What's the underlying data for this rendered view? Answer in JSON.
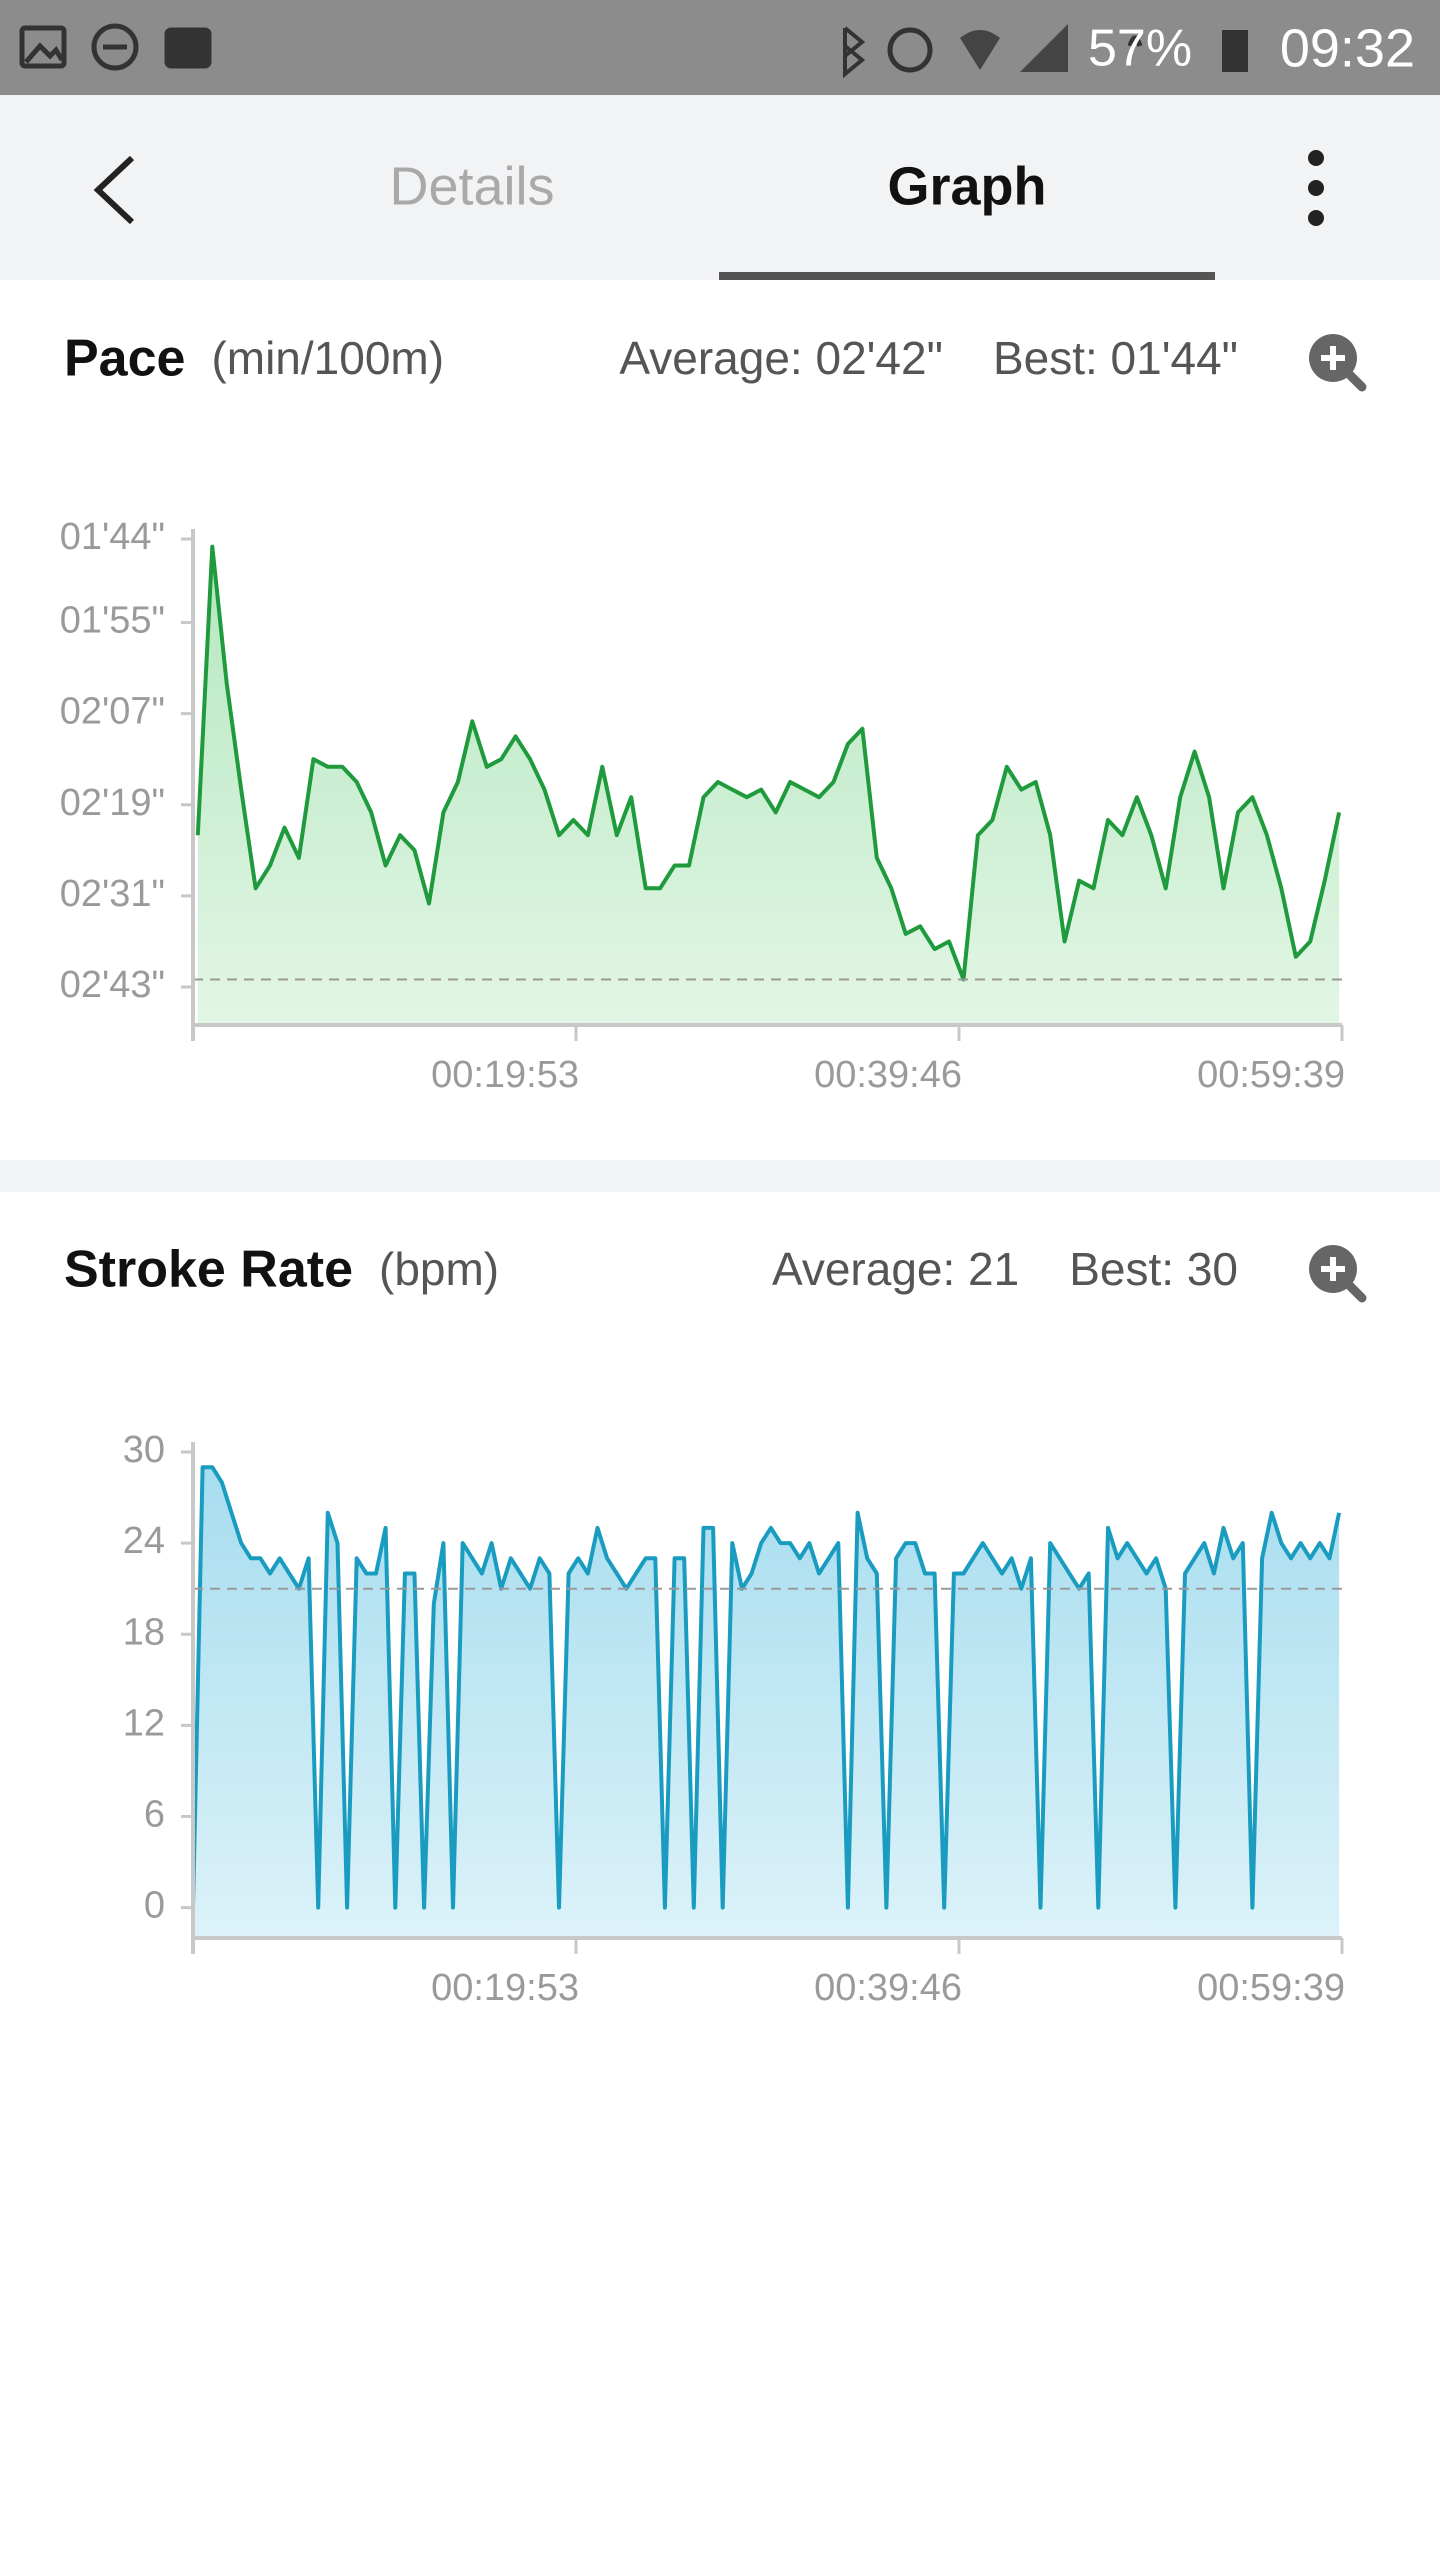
{
  "status_bar": {
    "battery": "57%",
    "time": "09:32"
  },
  "tabs": {
    "items": [
      "Details",
      "Graph"
    ],
    "selected": 1
  },
  "chart_data": [
    {
      "type": "line",
      "title": "Pace",
      "unit": "(min/100m)",
      "average_label": "Average: 02'42\"",
      "best_label": "Best: 01'44\"",
      "color": "#1f9a3c",
      "fill": "#bfeac8",
      "y_inverted": true,
      "average_line": 162,
      "xlim": [
        0,
        3579
      ],
      "xticks": [
        {
          "value": 1193,
          "label": "00:19:53"
        },
        {
          "value": 2386,
          "label": "00:39:46"
        },
        {
          "value": 3579,
          "label": "00:59:39"
        }
      ],
      "ylim": [
        104,
        168
      ],
      "yticks": [
        {
          "value": 104,
          "label": "01'44\""
        },
        {
          "value": 115,
          "label": "01'55\""
        },
        {
          "value": 127,
          "label": "02'07\""
        },
        {
          "value": 139,
          "label": "02'19\""
        },
        {
          "value": 151,
          "label": "02'31\""
        },
        {
          "value": 163,
          "label": "02'43\""
        }
      ],
      "x": [
        15,
        60,
        105,
        150,
        195,
        240,
        285,
        330,
        375,
        420,
        465,
        510,
        555,
        600,
        645,
        690,
        735,
        780,
        825,
        870,
        915,
        960,
        1005,
        1050,
        1095,
        1140,
        1185,
        1230,
        1275,
        1320,
        1365,
        1410,
        1455,
        1500,
        1545,
        1590,
        1635,
        1680,
        1725,
        1770,
        1815,
        1860,
        1905,
        1950,
        1995,
        2040,
        2085,
        2130,
        2175,
        2220,
        2265,
        2310,
        2355,
        2400,
        2445,
        2490,
        2535,
        2580,
        2625,
        2670,
        2715,
        2760,
        2805,
        2850,
        2895,
        2940,
        2985,
        3030,
        3075,
        3120,
        3165,
        3210,
        3255,
        3300,
        3345,
        3390,
        3435,
        3480,
        3525,
        3570
      ],
      "values": [
        143,
        105,
        123,
        137,
        150,
        147,
        142,
        146,
        133,
        134,
        134,
        136,
        140,
        147,
        143,
        145,
        152,
        140,
        136,
        128,
        134,
        133,
        130,
        133,
        137,
        143,
        141,
        143,
        134,
        143,
        138,
        150,
        150,
        147,
        147,
        138,
        136,
        137,
        138,
        137,
        140,
        136,
        137,
        138,
        136,
        131,
        129,
        146,
        150,
        156,
        155,
        158,
        157,
        162,
        143,
        141,
        134,
        137,
        136,
        143,
        157,
        149,
        150,
        141,
        143,
        138,
        143,
        150,
        138,
        132,
        138,
        150,
        140,
        138,
        143,
        150,
        159,
        157,
        149,
        140
      ]
    },
    {
      "type": "line",
      "title": "Stroke Rate",
      "unit": "(bpm)",
      "average_label": "Average: 21",
      "best_label": "Best: 30",
      "color": "#1a9cc0",
      "fill": "#aee0f1",
      "y_inverted": false,
      "average_line": 21,
      "xlim": [
        0,
        3579
      ],
      "xticks": [
        {
          "value": 1193,
          "label": "00:19:53"
        },
        {
          "value": 2386,
          "label": "00:39:46"
        },
        {
          "value": 3579,
          "label": "00:59:39"
        }
      ],
      "ylim": [
        -2,
        30
      ],
      "yticks": [
        0,
        6,
        12,
        18,
        24,
        30
      ],
      "x": [
        0,
        30,
        60,
        90,
        120,
        150,
        180,
        210,
        240,
        270,
        300,
        330,
        360,
        390,
        420,
        450,
        480,
        510,
        540,
        570,
        600,
        630,
        660,
        690,
        720,
        750,
        780,
        810,
        840,
        870,
        900,
        930,
        960,
        990,
        1020,
        1050,
        1080,
        1110,
        1140,
        1170,
        1200,
        1230,
        1260,
        1290,
        1320,
        1350,
        1380,
        1410,
        1440,
        1470,
        1500,
        1530,
        1560,
        1590,
        1620,
        1650,
        1680,
        1710,
        1740,
        1770,
        1800,
        1830,
        1860,
        1890,
        1920,
        1950,
        1980,
        2010,
        2040,
        2070,
        2100,
        2130,
        2160,
        2190,
        2220,
        2250,
        2280,
        2310,
        2340,
        2370,
        2400,
        2430,
        2460,
        2490,
        2520,
        2550,
        2580,
        2610,
        2640,
        2670,
        2700,
        2730,
        2760,
        2790,
        2820,
        2850,
        2880,
        2910,
        2940,
        2970,
        3000,
        3030,
        3060,
        3090,
        3120,
        3150,
        3180,
        3210,
        3240,
        3270,
        3300,
        3330,
        3360,
        3390,
        3420,
        3450,
        3480,
        3510,
        3540,
        3570
      ],
      "values": [
        0,
        29,
        29,
        28,
        26,
        24,
        23,
        23,
        22,
        23,
        22,
        21,
        23,
        0,
        26,
        24,
        0,
        23,
        22,
        22,
        25,
        0,
        22,
        22,
        0,
        20,
        24,
        0,
        24,
        23,
        22,
        24,
        21,
        23,
        22,
        21,
        23,
        22,
        0,
        22,
        23,
        22,
        25,
        23,
        22,
        21,
        22,
        23,
        23,
        0,
        23,
        23,
        0,
        25,
        25,
        0,
        24,
        21,
        22,
        24,
        25,
        24,
        24,
        23,
        24,
        22,
        23,
        24,
        0,
        26,
        23,
        22,
        0,
        23,
        24,
        24,
        22,
        22,
        0,
        22,
        22,
        23,
        24,
        23,
        22,
        23,
        21,
        23,
        0,
        24,
        23,
        22,
        21,
        22,
        0,
        25,
        23,
        24,
        23,
        22,
        23,
        21,
        0,
        22,
        23,
        24,
        22,
        25,
        23,
        24,
        0,
        23,
        26,
        24,
        23,
        24,
        23,
        24,
        23,
        26
      ]
    }
  ]
}
